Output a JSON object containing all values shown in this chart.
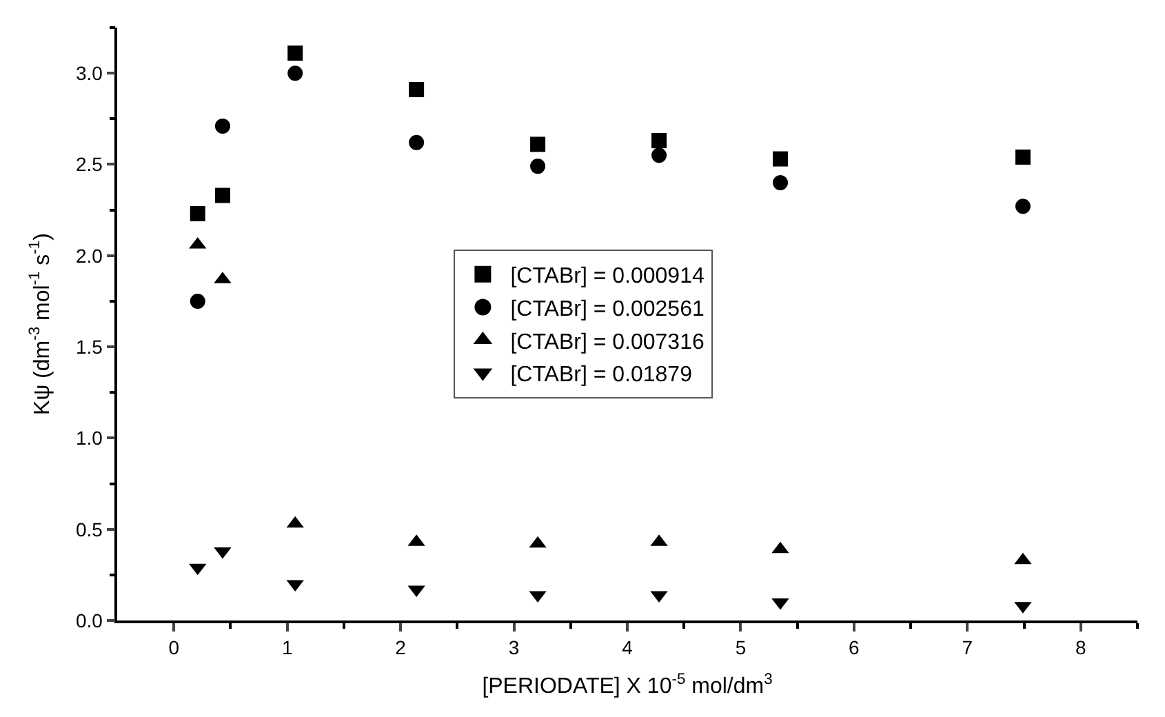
{
  "chart_data": {
    "type": "scatter",
    "xlabel": "[PERIODATE] X 10$^{-5}$ mol/dm$^{3}$",
    "ylabel": "Kψ (dm$^{-3}$ mol$^{-1}$ s$^{-1}$)",
    "x": [
      0.21,
      0.43,
      1.07,
      2.14,
      3.21,
      4.28,
      5.35,
      7.49
    ],
    "series": [
      {
        "name": "[CTABr] = 0.000914",
        "color": "#000000",
        "marker": "square",
        "values": [
          2.23,
          2.33,
          3.11,
          2.91,
          2.61,
          2.63,
          2.53,
          2.54
        ]
      },
      {
        "name": "[CTABr] = 0.002561",
        "color": "#000000",
        "marker": "circle",
        "values": [
          1.75,
          2.71,
          3.0,
          2.62,
          2.49,
          2.55,
          2.4,
          2.27
        ]
      },
      {
        "name": "[CTABr] = 0.007316",
        "color": "#000000",
        "marker": "triangle",
        "values": [
          2.06,
          1.87,
          0.53,
          0.43,
          0.42,
          0.43,
          0.39,
          0.33
        ]
      },
      {
        "name": "[CTABr] = 0.01879",
        "color": "#000000",
        "marker": "triangle-down",
        "values": [
          0.29,
          0.38,
          0.2,
          0.17,
          0.14,
          0.14,
          0.1,
          0.08
        ]
      }
    ],
    "xlim": [
      -0.5,
      8.5
    ],
    "xticks": [
      0,
      1,
      2,
      3,
      4,
      5,
      6,
      7,
      8
    ],
    "ylim": [
      0,
      3.25
    ],
    "yticks": [
      {
        "value": 0,
        "label": "0.0"
      },
      {
        "value": 0.5,
        "label": "0.5"
      },
      {
        "value": 1,
        "label": "1.0"
      },
      {
        "value": 1.5,
        "label": "1.5"
      },
      {
        "value": 2,
        "label": "2.0"
      },
      {
        "value": 2.5,
        "label": "2.5"
      },
      {
        "value": 3,
        "label": "3.0"
      }
    ],
    "legend": "center"
  }
}
